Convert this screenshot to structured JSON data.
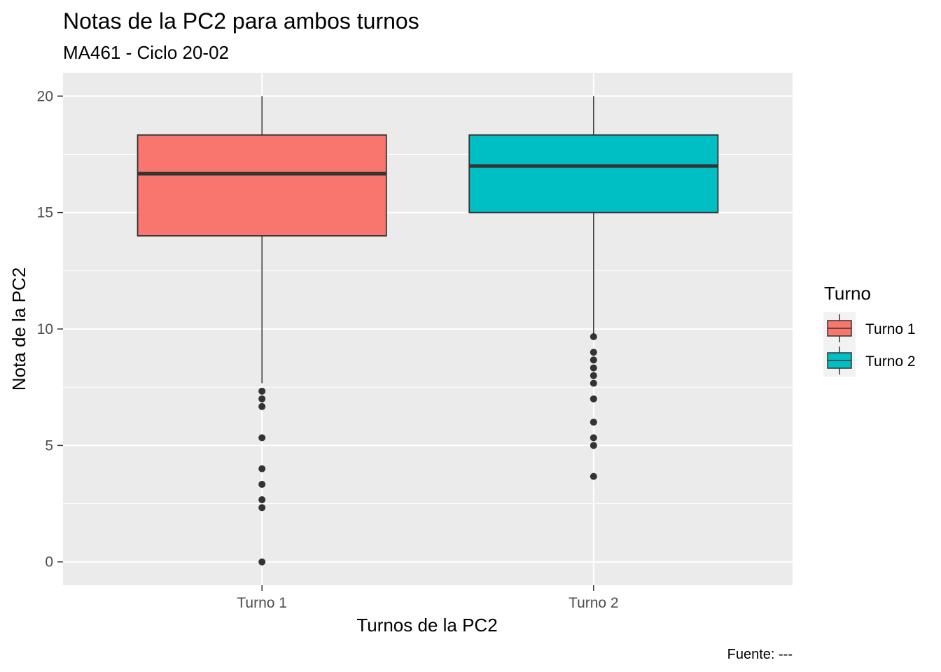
{
  "chart_data": {
    "type": "boxplot",
    "title": "Notas de la PC2 para ambos turnos",
    "subtitle": "MA461 - Ciclo 20-02",
    "xlabel": "Turnos de la PC2",
    "ylabel": "Nota de la PC2",
    "caption": "Fuente: ---",
    "ylim": [
      -1,
      21
    ],
    "y_ticks": [
      0,
      5,
      10,
      15,
      20
    ],
    "y_tick_labels": [
      "0",
      "5",
      "10",
      "15",
      "20"
    ],
    "grid": true,
    "legend": {
      "title": "Turno",
      "position": "right",
      "entries": [
        "Turno 1",
        "Turno 2"
      ]
    },
    "categories": [
      "Turno 1",
      "Turno 2"
    ],
    "series": [
      {
        "category": "Turno 1",
        "color": "#F8766D",
        "q1": 14.0,
        "median": 16.67,
        "q3": 18.33,
        "whisker_low": 7.67,
        "whisker_high": 20.0,
        "outliers": [
          7.33,
          7.0,
          6.67,
          5.33,
          4.0,
          3.33,
          2.67,
          2.33,
          0.0
        ]
      },
      {
        "category": "Turno 2",
        "color": "#00BFC4",
        "q1": 15.0,
        "median": 17.0,
        "q3": 18.33,
        "whisker_low": 9.67,
        "whisker_high": 20.0,
        "outliers": [
          9.67,
          9.0,
          8.67,
          8.33,
          8.0,
          7.67,
          7.0,
          6.0,
          5.33,
          5.0,
          3.67
        ]
      }
    ]
  }
}
